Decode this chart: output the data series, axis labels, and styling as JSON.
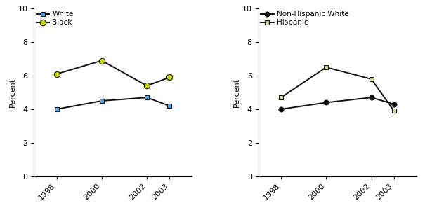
{
  "years": [
    1998,
    2000,
    2002,
    2003
  ],
  "left": {
    "series": [
      {
        "label": "White",
        "values": [
          4.0,
          4.5,
          4.7,
          4.2
        ],
        "color": "#4da6e8",
        "marker": "s",
        "markersize": 5
      },
      {
        "label": "Black",
        "values": [
          6.1,
          6.9,
          5.4,
          5.9
        ],
        "color": "#c8d400",
        "marker": "o",
        "markersize": 6
      }
    ],
    "ylabel": "Percent",
    "ylim": [
      0,
      10
    ],
    "yticks": [
      0,
      2,
      4,
      6,
      8,
      10
    ]
  },
  "right": {
    "series": [
      {
        "label": "Non-Hispanic White",
        "values": [
          4.0,
          4.4,
          4.7,
          4.3
        ],
        "color": "#111111",
        "marker": "o",
        "markersize": 5
      },
      {
        "label": "Hispanic",
        "values": [
          4.7,
          6.5,
          5.8,
          3.9
        ],
        "color": "#d4d8a0",
        "marker": "s",
        "markersize": 5
      }
    ],
    "ylabel": "Percent",
    "ylim": [
      0,
      10
    ],
    "yticks": [
      0,
      2,
      4,
      6,
      8,
      10
    ]
  },
  "line_color": "#111111",
  "line_width": 1.4,
  "legend_fontsize": 7.5,
  "tick_fontsize": 8,
  "ylabel_fontsize": 8,
  "background_color": "#ffffff"
}
